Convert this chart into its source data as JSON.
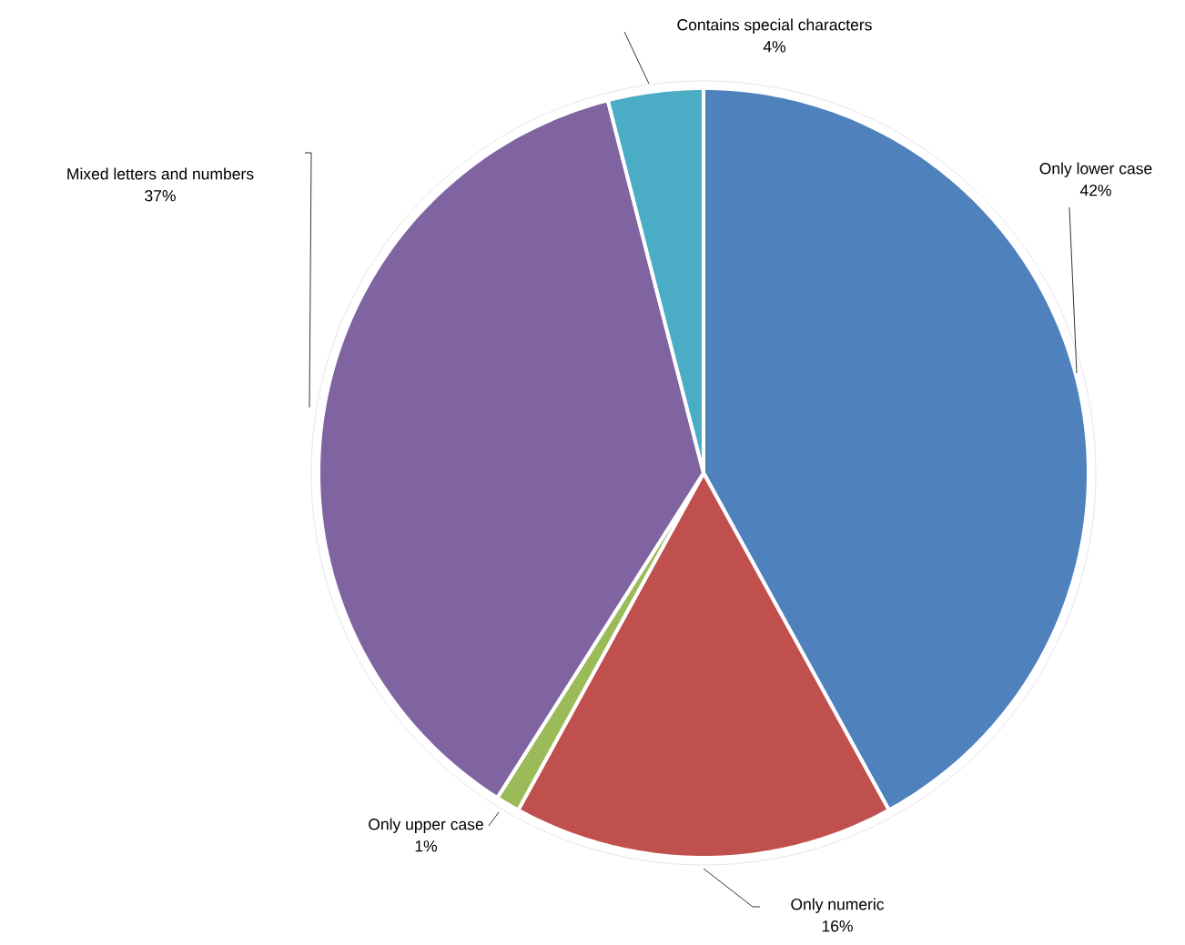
{
  "chart_data": {
    "type": "pie",
    "categories": [
      "Only lower case",
      "Only numeric",
      "Only upper case",
      "Mixed letters and numbers",
      "Contains special characters"
    ],
    "values": [
      42,
      16,
      1,
      37,
      4
    ],
    "value_labels": [
      "42%",
      "16%",
      "1%",
      "37%",
      "4%"
    ],
    "colors": [
      "#4f81bd",
      "#c0504d",
      "#9bbb59",
      "#8064a2",
      "#4bacc6"
    ]
  }
}
